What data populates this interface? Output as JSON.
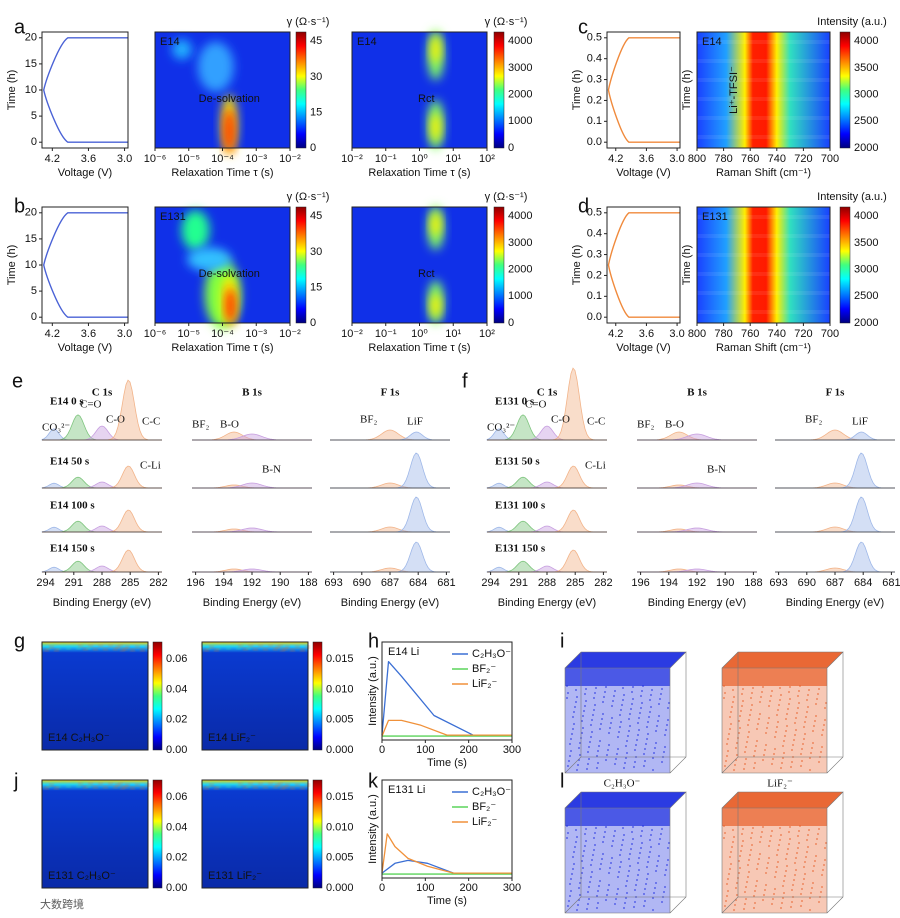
{
  "figure": {
    "panel_labels": [
      "a",
      "b",
      "c",
      "d",
      "e",
      "f",
      "g",
      "h",
      "i",
      "j",
      "k",
      "l"
    ],
    "plots": [
      {
        "kind": "vt",
        "color": "#4a62d6",
        "ylabel": "Time (h)",
        "xlabel": "Voltage (V)",
        "xticks": [
          "4.2",
          "3.6",
          "3.0"
        ],
        "yticks": [
          "0",
          "5",
          "10",
          "15",
          "20"
        ]
      },
      {
        "kind": "heat",
        "inset": "E14",
        "annotation": "De-solvation",
        "xlabel": "Relaxation Time τ (s)",
        "xticks": [
          "10⁻⁶",
          "10⁻⁵",
          "10⁻⁴",
          "10⁻³",
          "10⁻²"
        ],
        "cbar_title": "γ (Ω·s⁻¹)",
        "cbar_ticks": [
          "0",
          "15",
          "30",
          "45"
        ]
      },
      {
        "kind": "heat",
        "inset": "E14",
        "annotation": "Rct",
        "xlabel": "Relaxation Time τ (s)",
        "xticks": [
          "10⁻²",
          "10⁻¹",
          "10⁰",
          "10¹",
          "10²"
        ],
        "cbar_title": "γ (Ω·s⁻¹)",
        "cbar_ticks": [
          "0",
          "1000",
          "2000",
          "3000",
          "4000"
        ]
      },
      {
        "kind": "vt",
        "color": "#f08a3c",
        "ylabel": "Time (h)",
        "xlabel": "Voltage (V)",
        "xticks": [
          "4.2",
          "3.6",
          "3.0"
        ],
        "yticks": [
          "0.0",
          "0.1",
          "0.2",
          "0.3",
          "0.4",
          "0.5"
        ]
      },
      {
        "kind": "heat",
        "inset": "E14",
        "annotation": "Li⁺-TFSI⁻",
        "ylabel": "Time (h)",
        "xlabel": "Raman Shift (cm⁻¹)",
        "xticks": [
          "800",
          "780",
          "760",
          "740",
          "720",
          "700"
        ],
        "cbar_title": "Intensity (a.u.)",
        "cbar_ticks": [
          "2000",
          "2500",
          "3000",
          "3500",
          "4000"
        ]
      },
      {
        "kind": "vt",
        "color": "#4a62d6",
        "ylabel": "Time (h)",
        "xlabel": "Voltage (V)",
        "xticks": [
          "4.2",
          "3.6",
          "3.0"
        ],
        "yticks": [
          "0",
          "5",
          "10",
          "15",
          "20"
        ]
      },
      {
        "kind": "heat",
        "inset": "E131",
        "annotation": "De-solvation",
        "xlabel": "Relaxation Time τ (s)",
        "xticks": [
          "10⁻⁶",
          "10⁻⁵",
          "10⁻⁴",
          "10⁻³",
          "10⁻²"
        ],
        "cbar_title": "γ (Ω·s⁻¹)",
        "cbar_ticks": [
          "0",
          "15",
          "30",
          "45"
        ]
      },
      {
        "kind": "heat",
        "annotation": "Rct",
        "xlabel": "Relaxation Time τ (s)",
        "xticks": [
          "10⁻²",
          "10⁻¹",
          "10⁰",
          "10¹",
          "10²"
        ],
        "cbar_title": "γ (Ω·s⁻¹)",
        "cbar_ticks": [
          "0",
          "1000",
          "2000",
          "3000",
          "4000"
        ]
      },
      {
        "kind": "vt",
        "color": "#f08a3c",
        "ylabel": "Time (h)",
        "xlabel": "Voltage (V)",
        "xticks": [
          "4.2",
          "3.6",
          "3.0"
        ],
        "yticks": [
          "0.0",
          "0.1",
          "0.2",
          "0.3",
          "0.4",
          "0.5"
        ]
      },
      {
        "kind": "heat",
        "inset": "E131",
        "ylabel": "Time (h)",
        "xlabel": "Raman Shift (cm⁻¹)",
        "xticks": [
          "800",
          "780",
          "760",
          "740",
          "720",
          "700"
        ],
        "cbar_title": "Intensity (a.u.)",
        "cbar_ticks": [
          "2000",
          "2500",
          "3000",
          "3500",
          "4000"
        ]
      }
    ],
    "xps": [
      {
        "rows": [
          "E14 0 s",
          "E14 50 s",
          "E14 100 s",
          "E14 150 s"
        ],
        "columns": [
          {
            "title": "C 1s",
            "xticks": [
              "294",
              "291",
              "288",
              "285",
              "282"
            ]
          },
          {
            "title": "B 1s",
            "xticks": [
              "196",
              "194",
              "192",
              "190",
              "188"
            ]
          },
          {
            "title": "F 1s",
            "xticks": [
              "693",
              "690",
              "687",
              "684",
              "681"
            ]
          }
        ],
        "annotations": [
          "CO₃²⁻",
          "C=O",
          "C-O",
          "C-C",
          "C-Li",
          "BF₂",
          "B-O",
          "B-N",
          "BF₂",
          "LiF"
        ],
        "xlabel": "Binding Energy (eV)"
      },
      {
        "rows": [
          "E131 0 s",
          "E131 50 s",
          "E131 100 s",
          "E131 150 s"
        ],
        "columns": [
          {
            "title": "C 1s",
            "xticks": [
              "294",
              "291",
              "288",
              "285",
              "282"
            ]
          },
          {
            "title": "B 1s",
            "xticks": [
              "196",
              "194",
              "192",
              "190",
              "188"
            ]
          },
          {
            "title": "F 1s",
            "xticks": [
              "693",
              "690",
              "687",
              "684",
              "681"
            ]
          }
        ],
        "annotations": [
          "CO₃²⁻",
          "C=O",
          "C-O",
          "C-C",
          "C-Li",
          "BF₂",
          "B-O",
          "B-N",
          "BF₂",
          "LiF"
        ],
        "xlabel": "Binding Energy (eV)"
      }
    ],
    "tof_maps": [
      {
        "label": "E14 C₂H₃O⁻",
        "cbar_ticks": [
          "0.00",
          "0.02",
          "0.04",
          "0.06"
        ]
      },
      {
        "label": "E14 LiF₂⁻",
        "cbar_ticks": [
          "0.000",
          "0.005",
          "0.010",
          "0.015"
        ]
      },
      {
        "label": "E131 C₂H₃O⁻",
        "cbar_ticks": [
          "0.00",
          "0.02",
          "0.04",
          "0.06"
        ]
      },
      {
        "label": "E131 LiF₂⁻",
        "cbar_ticks": [
          "0.000",
          "0.005",
          "0.010",
          "0.015"
        ]
      }
    ],
    "depth_profiles": [
      {
        "inset": "E14 Li",
        "ylabel": "Intensity (a.u.)",
        "xlabel": "Time (s)",
        "xticks": [
          "0",
          "100",
          "200",
          "300"
        ],
        "series": [
          {
            "name": "C₂H₃O⁻",
            "color": "#3b6fd4"
          },
          {
            "name": "BF₂⁻",
            "color": "#5ad45a"
          },
          {
            "name": "LiF₂⁻",
            "color": "#f0913a"
          }
        ]
      },
      {
        "inset": "E131 Li",
        "ylabel": "Intensity (a.u.)",
        "xlabel": "Time (s)",
        "xticks": [
          "0",
          "100",
          "200",
          "300"
        ],
        "series": [
          {
            "name": "C₂H₃O⁻",
            "color": "#3b6fd4"
          },
          {
            "name": "BF₂⁻",
            "color": "#5ad45a"
          },
          {
            "name": "LiF₂⁻",
            "color": "#f0913a"
          }
        ]
      }
    ],
    "cube_labels": [
      "C₂H₃O⁻",
      "LiF₂⁻"
    ],
    "watermark": "大数跨境"
  }
}
